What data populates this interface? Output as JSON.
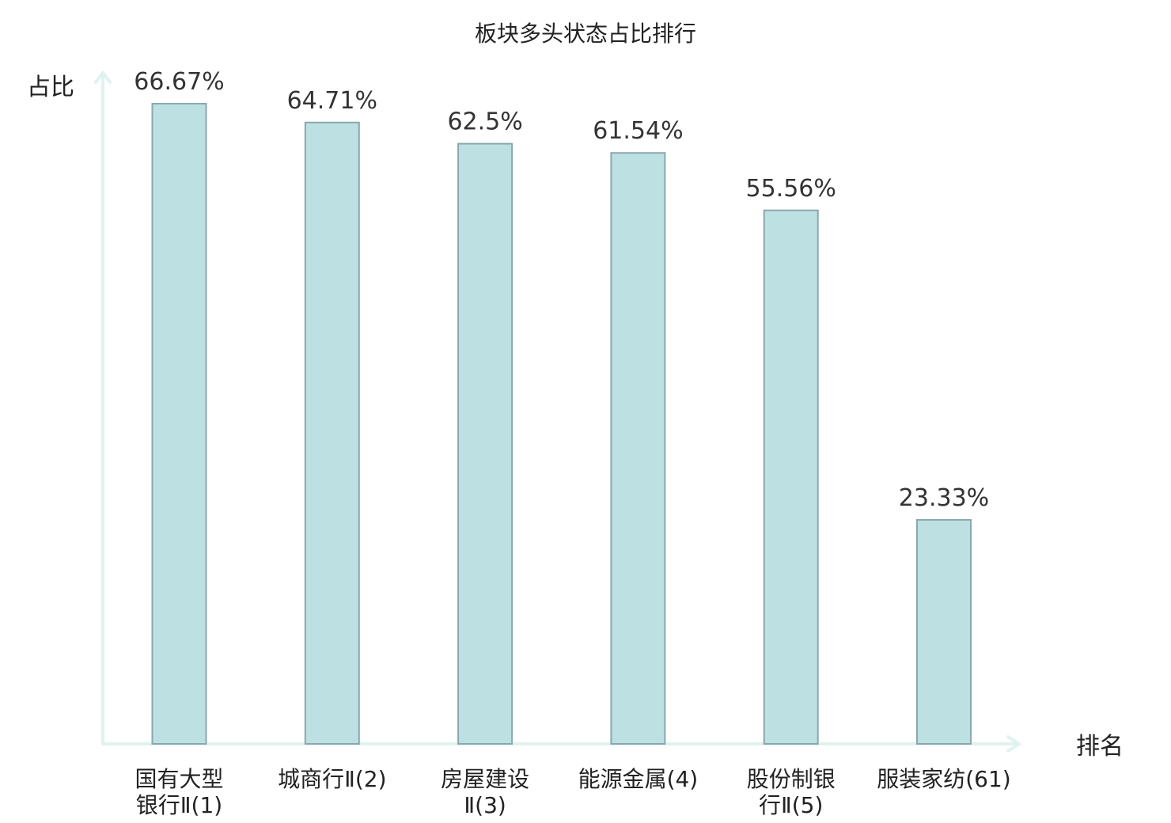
{
  "chart_data": {
    "type": "bar",
    "title": "板块多头状态占比排行",
    "ylabel": "占比",
    "xlabel": "排名",
    "categories": [
      [
        "国有大型",
        "银行Ⅱ(1)"
      ],
      [
        "城商行Ⅱ(2)"
      ],
      [
        "房屋建设",
        "Ⅱ(3)"
      ],
      [
        "能源金属(4)"
      ],
      [
        "股份制银",
        "行Ⅱ(5)"
      ],
      [
        "服装家纺(61)"
      ]
    ],
    "values": [
      66.67,
      64.71,
      62.5,
      61.54,
      55.56,
      23.33
    ],
    "value_labels": [
      "66.67%",
      "64.71%",
      "62.5%",
      "61.54%",
      "55.56%",
      "23.33%"
    ],
    "highlight_index": 5,
    "colors": {
      "bar_fill": "#bde0e3",
      "bar_stroke": "#8aa8ab",
      "axis": "#e0f2ef",
      "text": "#222222",
      "highlight_text": "#e8201a"
    },
    "grid": false
  }
}
